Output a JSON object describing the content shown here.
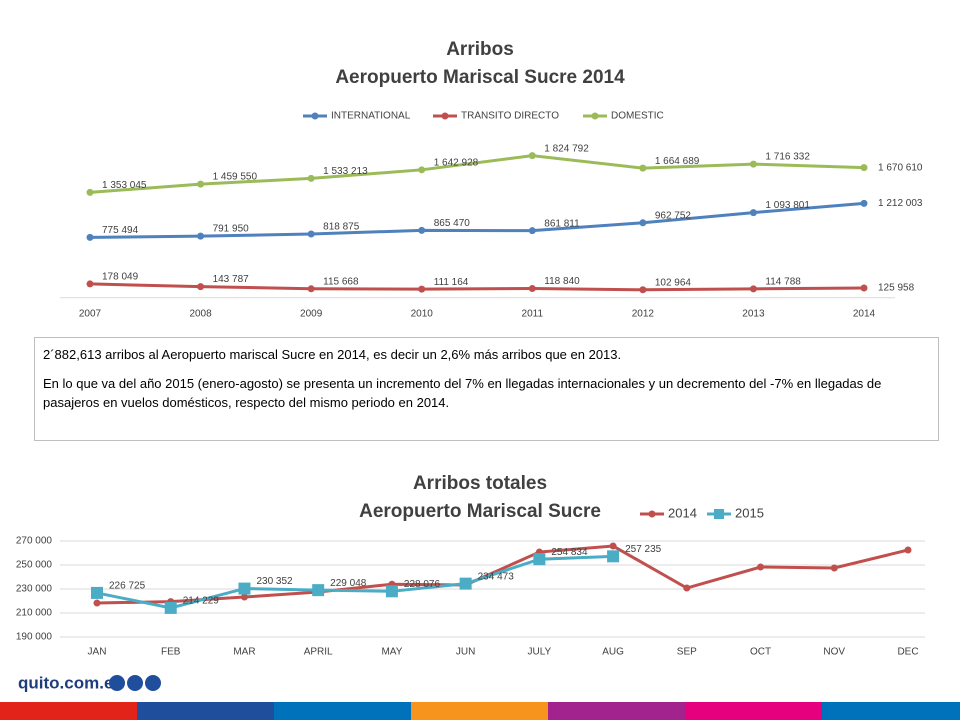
{
  "chart_data": [
    {
      "type": "line",
      "title": "Arribos",
      "subtitle": "Aeropuerto Mariscal Sucre 2014",
      "categories": [
        "2007",
        "2008",
        "2009",
        "2010",
        "2011",
        "2012",
        "2013",
        "2014"
      ],
      "ylim": [
        0,
        2000000
      ],
      "series": [
        {
          "name": "INTERNATIONAL",
          "color": "#4f81bd",
          "marker": "circle",
          "values": [
            775494,
            791950,
            818875,
            865470,
            861811,
            962752,
            1093801,
            1212003
          ],
          "value_labels": [
            "775 494",
            "791 950",
            "818 875",
            "865 470",
            "861 811",
            "962 752",
            "1 093 801",
            "1 212 003"
          ]
        },
        {
          "name": "TRANSITO DIRECTO",
          "color": "#c0504d",
          "marker": "circle",
          "values": [
            178049,
            143787,
            115668,
            111164,
            118840,
            102964,
            114788,
            125958
          ],
          "value_labels": [
            "178 049",
            "143 787",
            "115 668",
            "111 164",
            "118 840",
            "102 964",
            "114 788",
            "125 958"
          ]
        },
        {
          "name": "DOMESTIC",
          "color": "#9bbb59",
          "marker": "circle",
          "values": [
            1353045,
            1459550,
            1533213,
            1642928,
            1824792,
            1664689,
            1716332,
            1670610
          ],
          "value_labels": [
            "1 353 045",
            "1 459 550",
            "1 533 213",
            "1 642 928",
            "1 824 792",
            "1 664 689",
            "1 716 332",
            "1 670 610"
          ]
        }
      ],
      "legend": "top",
      "grid": false
    },
    {
      "type": "line",
      "title": "Arribos totales",
      "subtitle": "Aeropuerto Mariscal Sucre",
      "categories": [
        "JAN",
        "FEB",
        "MAR",
        "APRIL",
        "MAY",
        "JUN",
        "JULY",
        "AUG",
        "SEP",
        "OCT",
        "NOV",
        "DEC"
      ],
      "ylim": [
        190000,
        270000
      ],
      "yticks": [
        {
          "value": 190000,
          "label": "190 000"
        },
        {
          "value": 210000,
          "label": "210 000"
        },
        {
          "value": 230000,
          "label": "230 000"
        },
        {
          "value": 250000,
          "label": "250 000"
        },
        {
          "value": 270000,
          "label": "270 000"
        }
      ],
      "series": [
        {
          "name": "2014",
          "color": "#c0504d",
          "marker": "circle",
          "values": [
            218300,
            219500,
            223300,
            227500,
            234000,
            233300,
            260800,
            265800,
            230800,
            248300,
            247500,
            262500
          ]
        },
        {
          "name": "2015",
          "color": "#4bacc6",
          "marker": "square",
          "values": [
            226725,
            214229,
            230352,
            229048,
            228076,
            234473,
            254834,
            257235,
            null,
            null,
            null,
            null
          ],
          "value_labels": [
            "226 725",
            "214 229",
            "230 352",
            "229 048",
            "228 076",
            "234 473",
            "254 834",
            "257 235",
            null,
            null,
            null,
            null
          ]
        }
      ],
      "legend": "top-right",
      "grid": true
    }
  ],
  "note": {
    "paragraphs": [
      "2´882,613 arribos al Aeropuerto mariscal Sucre en 2014, es decir un 2,6% más arribos que en 2013.",
      "En lo que va del año 2015 (enero-agosto) se presenta un incremento del 7% en llegadas internacionales y un decremento del -7% en llegadas de pasajeros en vuelos domésticos, respecto del mismo periodo en 2014."
    ]
  },
  "footer": {
    "brand": "quito.com.ec"
  }
}
